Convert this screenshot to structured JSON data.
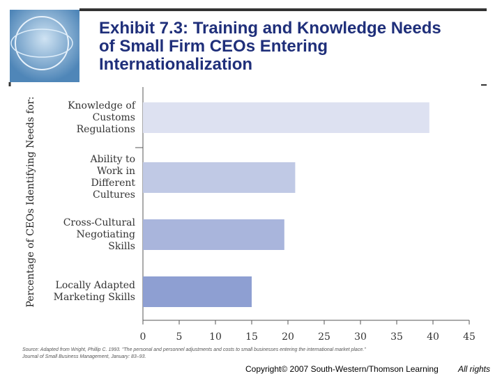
{
  "chart_data": {
    "type": "hbar",
    "title": "Exhibit 7.3: Training and Knowledge Needs of Small Firm CEOs Entering Internationalization",
    "y_label": "Percentage of CEOs Identifying Needs for:",
    "categories": [
      "Knowledge of\nCustoms\nRegulations",
      "Ability to\nWork in\nDifferent\nCultures",
      "Cross-Cultural\nNegotiating\nSkills",
      "Locally Adapted\nMarketing Skills"
    ],
    "values": [
      39.5,
      21,
      19.5,
      15
    ],
    "colors": [
      "#dde1f1",
      "#c0c9e5",
      "#a9b5dc",
      "#8e9fd2"
    ],
    "xlim": [
      0,
      45
    ],
    "xticks": [
      0,
      5,
      10,
      15,
      20,
      25,
      30,
      35,
      40,
      45
    ],
    "source": "Source: Adapted from Wright, Phillip C. 1993. \"The personal and personnel adjustments and costs to small businesses entering the international market place.\" Journal of Small Business Management, January: 83–93.",
    "copyright": "Copyright© 2007 South-Western/Thomson Learning",
    "rights": "All rights"
  }
}
